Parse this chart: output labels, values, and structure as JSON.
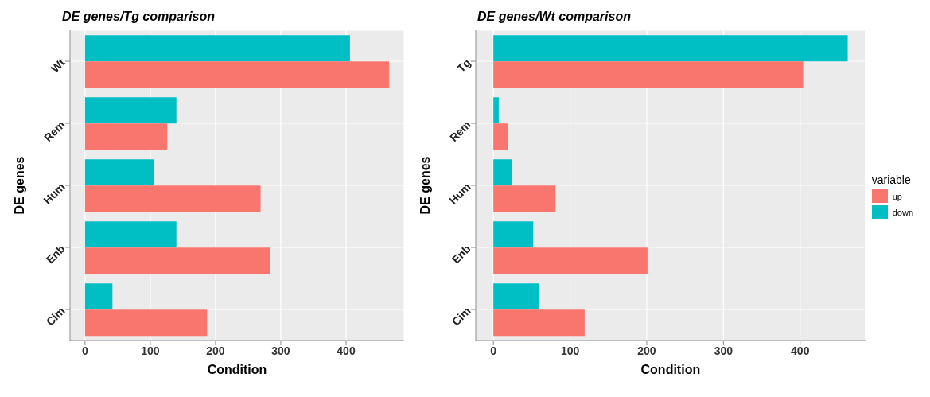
{
  "chart_data": [
    {
      "type": "bar",
      "orientation": "horizontal",
      "title": "DE genes/Tg comparison",
      "xlabel": "Condition",
      "ylabel": "DE genes",
      "categories": [
        "Wt",
        "Rem",
        "Hum",
        "Enb",
        "Cim"
      ],
      "series": [
        {
          "color": "#f8766d",
          "values": [
            466,
            126,
            269,
            284,
            187
          ]
        },
        {
          "color": "#00bfc4",
          "values": [
            406,
            140,
            106,
            140,
            42
          ]
        }
      ],
      "xlim": [
        -23,
        489
      ],
      "xticks": [
        0,
        100,
        200,
        300,
        400
      ],
      "grid": true,
      "legend": false
    },
    {
      "type": "bar",
      "orientation": "horizontal",
      "title": "DE genes/Wt comparison",
      "xlabel": "Condition",
      "ylabel": "DE genes",
      "categories": [
        "Tg",
        "Rem",
        "Hum",
        "Enb",
        "Cim"
      ],
      "series": [
        {
          "name": "up",
          "color": "#f8766d",
          "values": [
            404,
            19,
            81,
            201,
            119
          ]
        },
        {
          "name": "down",
          "color": "#00bfc4",
          "values": [
            462,
            7,
            24,
            52,
            59
          ]
        }
      ],
      "xlim": [
        -23,
        485
      ],
      "xticks": [
        0,
        100,
        200,
        300,
        400
      ],
      "grid": true,
      "legend": "right",
      "legend_title": "variable"
    }
  ]
}
